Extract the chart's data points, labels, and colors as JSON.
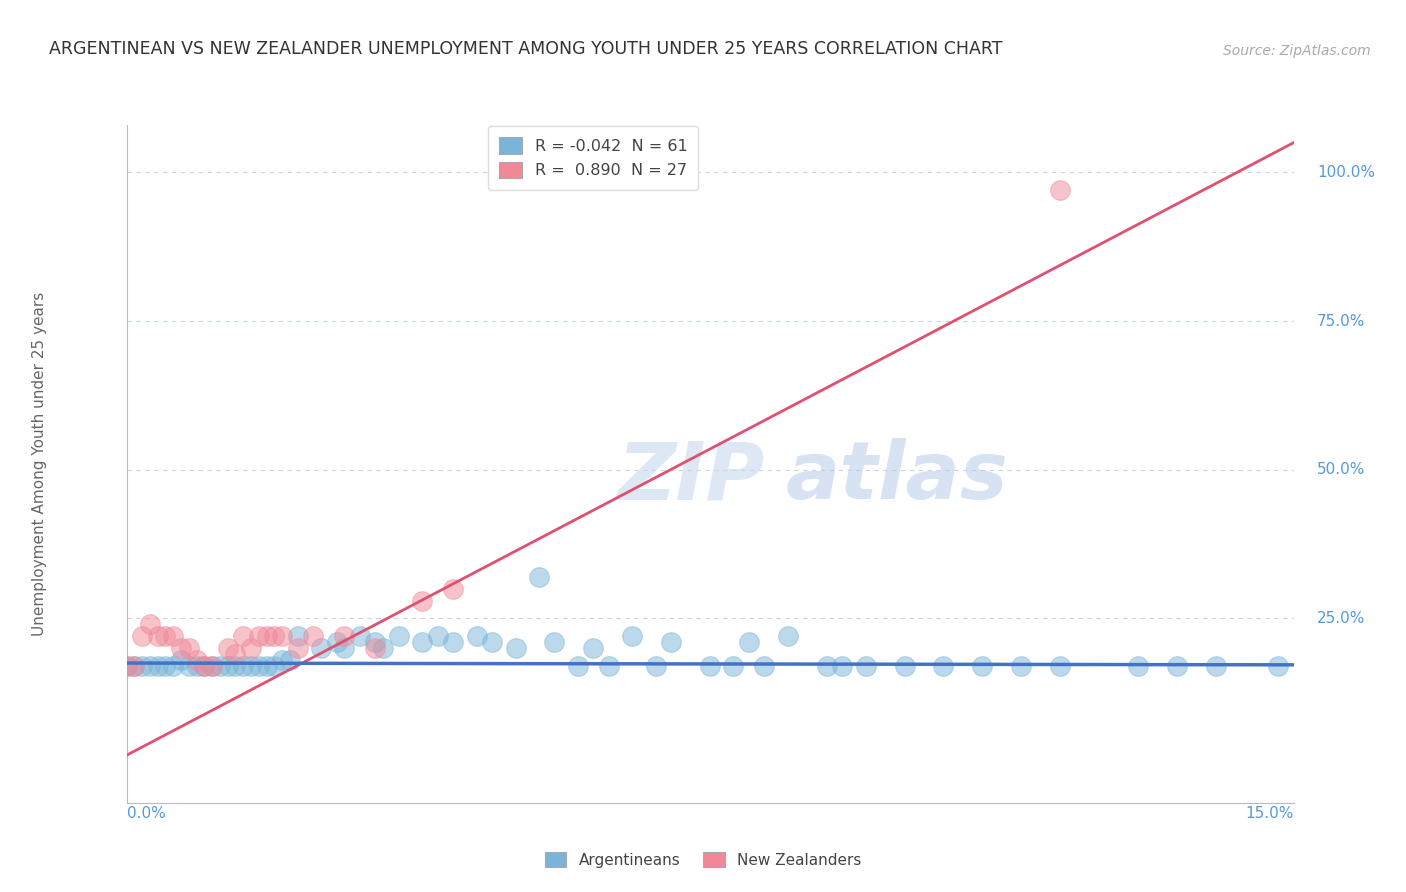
{
  "title": "ARGENTINEAN VS NEW ZEALANDER UNEMPLOYMENT AMONG YOUTH UNDER 25 YEARS CORRELATION CHART",
  "source": "Source: ZipAtlas.com",
  "ylabel": "Unemployment Among Youth under 25 years",
  "watermark_zip": "ZIP",
  "watermark_atlas": "atlas",
  "legend_arg_label": "R = -0.042  N = 61",
  "legend_nz_label": "R =  0.890  N = 27",
  "argentinean_color": "#7ab4d8",
  "nz_color": "#f08898",
  "trendline_arg_color": "#4472c4",
  "trendline_nz_color": "#e05070",
  "background_color": "#ffffff",
  "grid_color": "#c8d4e8",
  "label_color": "#5599dd",
  "xmin": 0.0,
  "xmax": 0.15,
  "ymin": -0.06,
  "ymax": 1.08,
  "ytick_vals": [
    0.0,
    0.25,
    0.5,
    0.75,
    1.0
  ],
  "ytick_labels": [
    "",
    "25.0%",
    "50.0%",
    "75.0%",
    "100.0%"
  ],
  "argentinean_scatter_x": [
    0.0,
    0.001,
    0.002,
    0.003,
    0.004,
    0.005,
    0.006,
    0.007,
    0.008,
    0.009,
    0.01,
    0.011,
    0.012,
    0.013,
    0.014,
    0.015,
    0.016,
    0.017,
    0.018,
    0.019,
    0.02,
    0.021,
    0.022,
    0.025,
    0.027,
    0.028,
    0.03,
    0.032,
    0.033,
    0.035,
    0.038,
    0.04,
    0.042,
    0.045,
    0.047,
    0.05,
    0.053,
    0.055,
    0.058,
    0.06,
    0.062,
    0.065,
    0.068,
    0.07,
    0.075,
    0.078,
    0.08,
    0.082,
    0.085,
    0.09,
    0.092,
    0.095,
    0.1,
    0.105,
    0.11,
    0.115,
    0.12,
    0.13,
    0.135,
    0.14,
    0.148
  ],
  "argentinean_scatter_y": [
    0.17,
    0.17,
    0.17,
    0.17,
    0.17,
    0.17,
    0.17,
    0.18,
    0.17,
    0.17,
    0.17,
    0.17,
    0.17,
    0.17,
    0.17,
    0.17,
    0.17,
    0.17,
    0.17,
    0.17,
    0.18,
    0.18,
    0.22,
    0.2,
    0.21,
    0.2,
    0.22,
    0.21,
    0.2,
    0.22,
    0.21,
    0.22,
    0.21,
    0.22,
    0.21,
    0.2,
    0.32,
    0.21,
    0.17,
    0.2,
    0.17,
    0.22,
    0.17,
    0.21,
    0.17,
    0.17,
    0.21,
    0.17,
    0.22,
    0.17,
    0.17,
    0.17,
    0.17,
    0.17,
    0.17,
    0.17,
    0.17,
    0.17,
    0.17,
    0.17,
    0.17
  ],
  "nz_scatter_x": [
    0.0,
    0.001,
    0.002,
    0.003,
    0.004,
    0.005,
    0.006,
    0.007,
    0.008,
    0.009,
    0.01,
    0.011,
    0.013,
    0.014,
    0.015,
    0.016,
    0.017,
    0.018,
    0.019,
    0.02,
    0.022,
    0.024,
    0.028,
    0.032,
    0.038,
    0.042,
    0.12
  ],
  "nz_scatter_y": [
    0.17,
    0.17,
    0.22,
    0.24,
    0.22,
    0.22,
    0.22,
    0.2,
    0.2,
    0.18,
    0.17,
    0.17,
    0.2,
    0.19,
    0.22,
    0.2,
    0.22,
    0.22,
    0.22,
    0.22,
    0.2,
    0.22,
    0.22,
    0.2,
    0.28,
    0.3,
    0.97
  ],
  "nz_trendline_x0": 0.0,
  "nz_trendline_y0": 0.02,
  "nz_trendline_x1": 0.15,
  "nz_trendline_y1": 1.05,
  "arg_trendline_x0": 0.0,
  "arg_trendline_y0": 0.175,
  "arg_trendline_x1": 0.15,
  "arg_trendline_y1": 0.172
}
